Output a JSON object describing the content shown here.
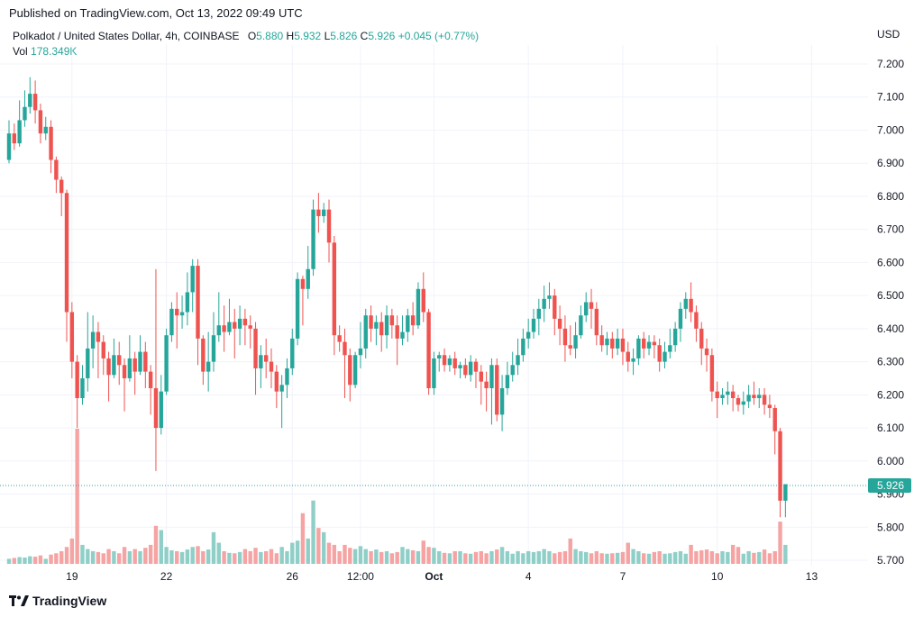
{
  "published": "Published on TradingView.com, Oct 13, 2022 09:49 UTC",
  "legend": {
    "symbol": "Polkadot / United States Dollar, 4h, COINBASE",
    "open_label": "O",
    "open": "5.880",
    "high_label": "H",
    "high": "5.932",
    "low_label": "L",
    "low": "5.826",
    "close_label": "C",
    "close": "5.926",
    "change": "+0.045 (+0.77%)",
    "vol_label": "Vol",
    "vol": "178.349K"
  },
  "currency": "USD",
  "price_tag": "5.926",
  "brand": "TradingView",
  "colors": {
    "up": "#26a69a",
    "down": "#ef5350",
    "up_vol": "#8fcfc8",
    "down_vol": "#f5a3a3",
    "grid": "#f0f3fa"
  },
  "chart_data": {
    "type": "candlestick",
    "title": "Polkadot / United States Dollar, 4h, COINBASE",
    "ylabel": "USD",
    "ylim": [
      5.67,
      7.27
    ],
    "y_ticks": [
      "7.200",
      "7.100",
      "7.000",
      "6.900",
      "6.800",
      "6.700",
      "6.600",
      "6.500",
      "6.400",
      "6.300",
      "6.200",
      "6.100",
      "6.000",
      "5.900",
      "5.800",
      "5.700"
    ],
    "x_ticks": [
      {
        "label": "19",
        "index": 12,
        "bold": false
      },
      {
        "label": "22",
        "index": 30,
        "bold": false
      },
      {
        "label": "26",
        "index": 54,
        "bold": false
      },
      {
        "label": "12:00",
        "index": 67,
        "bold": false
      },
      {
        "label": "Oct",
        "index": 81,
        "bold": true
      },
      {
        "label": "4",
        "index": 99,
        "bold": false
      },
      {
        "label": "7",
        "index": 117,
        "bold": false
      },
      {
        "label": "10",
        "index": 135,
        "bold": false
      },
      {
        "label": "13",
        "index": 153,
        "bold": false
      }
    ],
    "candles": [
      [
        6.91,
        6.99,
        7.03,
        6.9,
        12
      ],
      [
        6.99,
        6.96,
        7.02,
        6.94,
        14
      ],
      [
        6.96,
        7.03,
        7.09,
        6.95,
        16
      ],
      [
        7.03,
        7.07,
        7.12,
        7.01,
        15
      ],
      [
        7.07,
        7.11,
        7.16,
        7.05,
        18
      ],
      [
        7.11,
        7.06,
        7.15,
        7.02,
        17
      ],
      [
        7.06,
        6.99,
        7.08,
        6.96,
        20
      ],
      [
        6.99,
        7.01,
        7.04,
        6.97,
        12
      ],
      [
        7.01,
        6.91,
        7.03,
        6.87,
        22
      ],
      [
        6.91,
        6.85,
        6.92,
        6.81,
        25
      ],
      [
        6.85,
        6.81,
        6.86,
        6.74,
        30
      ],
      [
        6.81,
        6.45,
        6.82,
        6.36,
        40
      ],
      [
        6.45,
        6.3,
        6.48,
        6.25,
        60
      ],
      [
        6.3,
        6.19,
        6.32,
        6.1,
        320
      ],
      [
        6.19,
        6.25,
        6.29,
        6.17,
        45
      ],
      [
        6.25,
        6.34,
        6.45,
        6.21,
        35
      ],
      [
        6.34,
        6.39,
        6.44,
        6.28,
        30
      ],
      [
        6.39,
        6.36,
        6.42,
        6.25,
        28
      ],
      [
        6.36,
        6.31,
        6.38,
        6.26,
        25
      ],
      [
        6.31,
        6.26,
        6.33,
        6.18,
        35
      ],
      [
        6.26,
        6.32,
        6.37,
        6.25,
        30
      ],
      [
        6.32,
        6.29,
        6.36,
        6.23,
        25
      ],
      [
        6.29,
        6.25,
        6.31,
        6.15,
        40
      ],
      [
        6.25,
        6.31,
        6.38,
        6.24,
        30
      ],
      [
        6.31,
        6.27,
        6.33,
        6.2,
        35
      ],
      [
        6.27,
        6.33,
        6.38,
        6.26,
        30
      ],
      [
        6.33,
        6.27,
        6.36,
        6.22,
        38
      ],
      [
        6.27,
        6.22,
        6.29,
        6.14,
        45
      ],
      [
        6.22,
        6.1,
        6.58,
        5.97,
        90
      ],
      [
        6.1,
        6.21,
        6.26,
        6.08,
        80
      ],
      [
        6.21,
        6.38,
        6.4,
        6.2,
        40
      ],
      [
        6.38,
        6.46,
        6.48,
        6.36,
        32
      ],
      [
        6.46,
        6.44,
        6.51,
        6.34,
        30
      ],
      [
        6.44,
        6.45,
        6.5,
        6.4,
        28
      ],
      [
        6.45,
        6.51,
        6.57,
        6.41,
        34
      ],
      [
        6.51,
        6.59,
        6.61,
        6.45,
        40
      ],
      [
        6.59,
        6.37,
        6.61,
        6.29,
        42
      ],
      [
        6.37,
        6.27,
        6.38,
        6.23,
        30
      ],
      [
        6.27,
        6.3,
        6.39,
        6.21,
        34
      ],
      [
        6.3,
        6.38,
        6.45,
        6.27,
        75
      ],
      [
        6.38,
        6.41,
        6.51,
        6.36,
        50
      ],
      [
        6.41,
        6.39,
        6.47,
        6.33,
        30
      ],
      [
        6.39,
        6.42,
        6.49,
        6.38,
        26
      ],
      [
        6.42,
        6.4,
        6.46,
        6.31,
        25
      ],
      [
        6.4,
        6.43,
        6.47,
        6.35,
        28
      ],
      [
        6.43,
        6.41,
        6.46,
        6.35,
        35
      ],
      [
        6.41,
        6.4,
        6.44,
        6.34,
        30
      ],
      [
        6.4,
        6.28,
        6.42,
        6.2,
        38
      ],
      [
        6.28,
        6.32,
        6.35,
        6.22,
        28
      ],
      [
        6.32,
        6.3,
        6.37,
        6.25,
        30
      ],
      [
        6.3,
        6.27,
        6.34,
        6.22,
        35
      ],
      [
        6.27,
        6.21,
        6.29,
        6.16,
        25
      ],
      [
        6.21,
        6.23,
        6.26,
        6.1,
        40
      ],
      [
        6.23,
        6.28,
        6.31,
        6.19,
        30
      ],
      [
        6.28,
        6.37,
        6.4,
        6.26,
        50
      ],
      [
        6.37,
        6.55,
        6.57,
        6.35,
        55
      ],
      [
        6.55,
        6.52,
        6.56,
        6.41,
        120
      ],
      [
        6.52,
        6.58,
        6.65,
        6.49,
        60
      ],
      [
        6.58,
        6.76,
        6.79,
        6.56,
        150
      ],
      [
        6.76,
        6.74,
        6.81,
        6.69,
        85
      ],
      [
        6.74,
        6.76,
        6.78,
        6.72,
        75
      ],
      [
        6.76,
        6.66,
        6.79,
        6.6,
        50
      ],
      [
        6.66,
        6.38,
        6.68,
        6.32,
        45
      ],
      [
        6.38,
        6.36,
        6.41,
        6.33,
        30
      ],
      [
        6.36,
        6.32,
        6.4,
        6.19,
        45
      ],
      [
        6.32,
        6.23,
        6.34,
        6.18,
        38
      ],
      [
        6.23,
        6.32,
        6.33,
        6.22,
        35
      ],
      [
        6.32,
        6.34,
        6.42,
        6.28,
        42
      ],
      [
        6.34,
        6.44,
        6.46,
        6.31,
        35
      ],
      [
        6.44,
        6.4,
        6.47,
        6.36,
        30
      ],
      [
        6.4,
        6.42,
        6.44,
        6.35,
        34
      ],
      [
        6.42,
        6.38,
        6.45,
        6.33,
        28
      ],
      [
        6.38,
        6.44,
        6.47,
        6.34,
        30
      ],
      [
        6.44,
        6.41,
        6.46,
        6.37,
        25
      ],
      [
        6.41,
        6.37,
        6.44,
        6.29,
        28
      ],
      [
        6.37,
        6.39,
        6.44,
        6.35,
        40
      ],
      [
        6.39,
        6.44,
        6.46,
        6.36,
        35
      ],
      [
        6.44,
        6.41,
        6.48,
        6.38,
        32
      ],
      [
        6.41,
        6.52,
        6.54,
        6.4,
        30
      ],
      [
        6.52,
        6.45,
        6.57,
        6.42,
        55
      ],
      [
        6.45,
        6.22,
        6.46,
        6.2,
        40
      ],
      [
        6.22,
        6.31,
        6.33,
        6.2,
        38
      ],
      [
        6.31,
        6.32,
        6.33,
        6.27,
        30
      ],
      [
        6.32,
        6.29,
        6.34,
        6.27,
        26
      ],
      [
        6.29,
        6.31,
        6.32,
        6.27,
        25
      ],
      [
        6.31,
        6.28,
        6.33,
        6.26,
        30
      ],
      [
        6.28,
        6.29,
        6.3,
        6.25,
        30
      ],
      [
        6.29,
        6.26,
        6.31,
        6.25,
        25
      ],
      [
        6.26,
        6.3,
        6.32,
        6.24,
        24
      ],
      [
        6.3,
        6.27,
        6.31,
        6.22,
        28
      ],
      [
        6.27,
        6.24,
        6.29,
        6.17,
        30
      ],
      [
        6.24,
        6.22,
        6.27,
        6.15,
        25
      ],
      [
        6.22,
        6.29,
        6.31,
        6.11,
        30
      ],
      [
        6.29,
        6.14,
        6.31,
        6.12,
        34
      ],
      [
        6.14,
        6.22,
        6.26,
        6.09,
        40
      ],
      [
        6.22,
        6.26,
        6.3,
        6.2,
        30
      ],
      [
        6.26,
        6.29,
        6.33,
        6.24,
        24
      ],
      [
        6.29,
        6.32,
        6.37,
        6.26,
        30
      ],
      [
        6.32,
        6.37,
        6.4,
        6.3,
        25
      ],
      [
        6.37,
        6.39,
        6.43,
        6.34,
        30
      ],
      [
        6.39,
        6.43,
        6.46,
        6.37,
        28
      ],
      [
        6.43,
        6.46,
        6.49,
        6.38,
        30
      ],
      [
        6.46,
        6.49,
        6.53,
        6.42,
        35
      ],
      [
        6.49,
        6.5,
        6.54,
        6.46,
        30
      ],
      [
        6.5,
        6.43,
        6.52,
        6.38,
        25
      ],
      [
        6.43,
        6.4,
        6.47,
        6.35,
        28
      ],
      [
        6.4,
        6.35,
        6.44,
        6.3,
        30
      ],
      [
        6.35,
        6.34,
        6.41,
        6.32,
        60
      ],
      [
        6.34,
        6.38,
        6.42,
        6.31,
        35
      ],
      [
        6.38,
        6.44,
        6.47,
        6.37,
        30
      ],
      [
        6.44,
        6.48,
        6.51,
        6.42,
        28
      ],
      [
        6.48,
        6.46,
        6.52,
        6.4,
        25
      ],
      [
        6.46,
        6.38,
        6.48,
        6.35,
        30
      ],
      [
        6.38,
        6.35,
        6.41,
        6.33,
        25
      ],
      [
        6.35,
        6.37,
        6.39,
        6.32,
        24
      ],
      [
        6.37,
        6.34,
        6.39,
        6.31,
        25
      ],
      [
        6.34,
        6.37,
        6.4,
        6.32,
        26
      ],
      [
        6.37,
        6.33,
        6.4,
        6.29,
        28
      ],
      [
        6.33,
        6.3,
        6.36,
        6.27,
        50
      ],
      [
        6.3,
        6.31,
        6.34,
        6.26,
        35
      ],
      [
        6.31,
        6.37,
        6.38,
        6.29,
        30
      ],
      [
        6.37,
        6.34,
        6.39,
        6.31,
        25
      ],
      [
        6.34,
        6.36,
        6.38,
        6.32,
        24
      ],
      [
        6.36,
        6.35,
        6.38,
        6.31,
        28
      ],
      [
        6.35,
        6.3,
        6.37,
        6.27,
        30
      ],
      [
        6.3,
        6.33,
        6.36,
        6.28,
        24
      ],
      [
        6.33,
        6.35,
        6.4,
        6.31,
        25
      ],
      [
        6.35,
        6.4,
        6.42,
        6.33,
        28
      ],
      [
        6.4,
        6.46,
        6.48,
        6.36,
        30
      ],
      [
        6.46,
        6.49,
        6.51,
        6.43,
        24
      ],
      [
        6.49,
        6.45,
        6.54,
        6.42,
        45
      ],
      [
        6.45,
        6.4,
        6.47,
        6.36,
        30
      ],
      [
        6.4,
        6.34,
        6.42,
        6.29,
        32
      ],
      [
        6.34,
        6.32,
        6.37,
        6.27,
        34
      ],
      [
        6.32,
        6.21,
        6.34,
        6.18,
        30
      ],
      [
        6.21,
        6.19,
        6.24,
        6.13,
        25
      ],
      [
        6.19,
        6.2,
        6.22,
        6.17,
        30
      ],
      [
        6.2,
        6.21,
        6.24,
        6.17,
        28
      ],
      [
        6.21,
        6.19,
        6.23,
        6.15,
        45
      ],
      [
        6.19,
        6.17,
        6.2,
        6.15,
        40
      ],
      [
        6.17,
        6.18,
        6.21,
        6.14,
        24
      ],
      [
        6.18,
        6.2,
        6.23,
        6.16,
        30
      ],
      [
        6.2,
        6.19,
        6.24,
        6.17,
        26
      ],
      [
        6.19,
        6.2,
        6.22,
        6.16,
        28
      ],
      [
        6.2,
        6.17,
        6.22,
        6.14,
        34
      ],
      [
        6.17,
        6.16,
        6.2,
        6.13,
        25
      ],
      [
        6.16,
        6.09,
        6.17,
        6.02,
        30
      ],
      [
        6.09,
        5.88,
        6.1,
        5.83,
        100
      ],
      [
        5.88,
        5.93,
        5.93,
        5.83,
        45
      ]
    ]
  }
}
